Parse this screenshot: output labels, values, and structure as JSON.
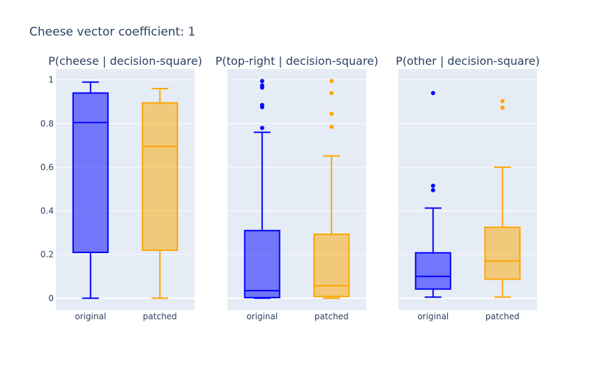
{
  "title": "Cheese vector coefficient: 1",
  "colors": {
    "original": "#0000ff",
    "patched": "#ffa500",
    "plot_bg": "#e5ecf6",
    "grid": "#ffffff",
    "text": "#2a3f5f"
  },
  "chart_data": [
    {
      "type": "box",
      "title": "P(cheese | decision-square)",
      "categories": [
        "original",
        "patched"
      ],
      "ylim": [
        -0.055,
        1.05
      ],
      "yticks": [
        0,
        0.2,
        0.4,
        0.6,
        0.8,
        1
      ],
      "ytick_labels": [
        "0",
        "0.2",
        "0.4",
        "0.6",
        "0.8",
        "1"
      ],
      "boxes": [
        {
          "category": "original",
          "lower_whisker": 0.0,
          "q1": 0.21,
          "median": 0.805,
          "q3": 0.94,
          "upper_whisker": 0.99,
          "outliers": []
        },
        {
          "category": "patched",
          "lower_whisker": 0.0,
          "q1": 0.22,
          "median": 0.695,
          "q3": 0.895,
          "upper_whisker": 0.96,
          "outliers": []
        }
      ]
    },
    {
      "type": "box",
      "title": "P(top-right | decision-square)",
      "categories": [
        "original",
        "patched"
      ],
      "ylim": [
        -0.055,
        1.05
      ],
      "boxes": [
        {
          "category": "original",
          "lower_whisker": 0.0,
          "q1": 0.003,
          "median": 0.035,
          "q3": 0.31,
          "upper_whisker": 0.76,
          "outliers": [
            0.78,
            0.875,
            0.885,
            0.965,
            0.975,
            0.995
          ]
        },
        {
          "category": "patched",
          "lower_whisker": 0.0,
          "q1": 0.008,
          "median": 0.057,
          "q3": 0.293,
          "upper_whisker": 0.652,
          "outliers": [
            0.785,
            0.845,
            0.94,
            0.995
          ]
        }
      ]
    },
    {
      "type": "box",
      "title": "P(other | decision-square)",
      "categories": [
        "original",
        "patched"
      ],
      "ylim": [
        -0.055,
        1.05
      ],
      "boxes": [
        {
          "category": "original",
          "lower_whisker": 0.005,
          "q1": 0.042,
          "median": 0.1,
          "q3": 0.208,
          "upper_whisker": 0.413,
          "outliers": [
            0.495,
            0.515,
            0.94
          ]
        },
        {
          "category": "patched",
          "lower_whisker": 0.005,
          "q1": 0.087,
          "median": 0.17,
          "q3": 0.325,
          "upper_whisker": 0.6,
          "outliers": [
            0.873,
            0.903
          ]
        }
      ]
    }
  ]
}
